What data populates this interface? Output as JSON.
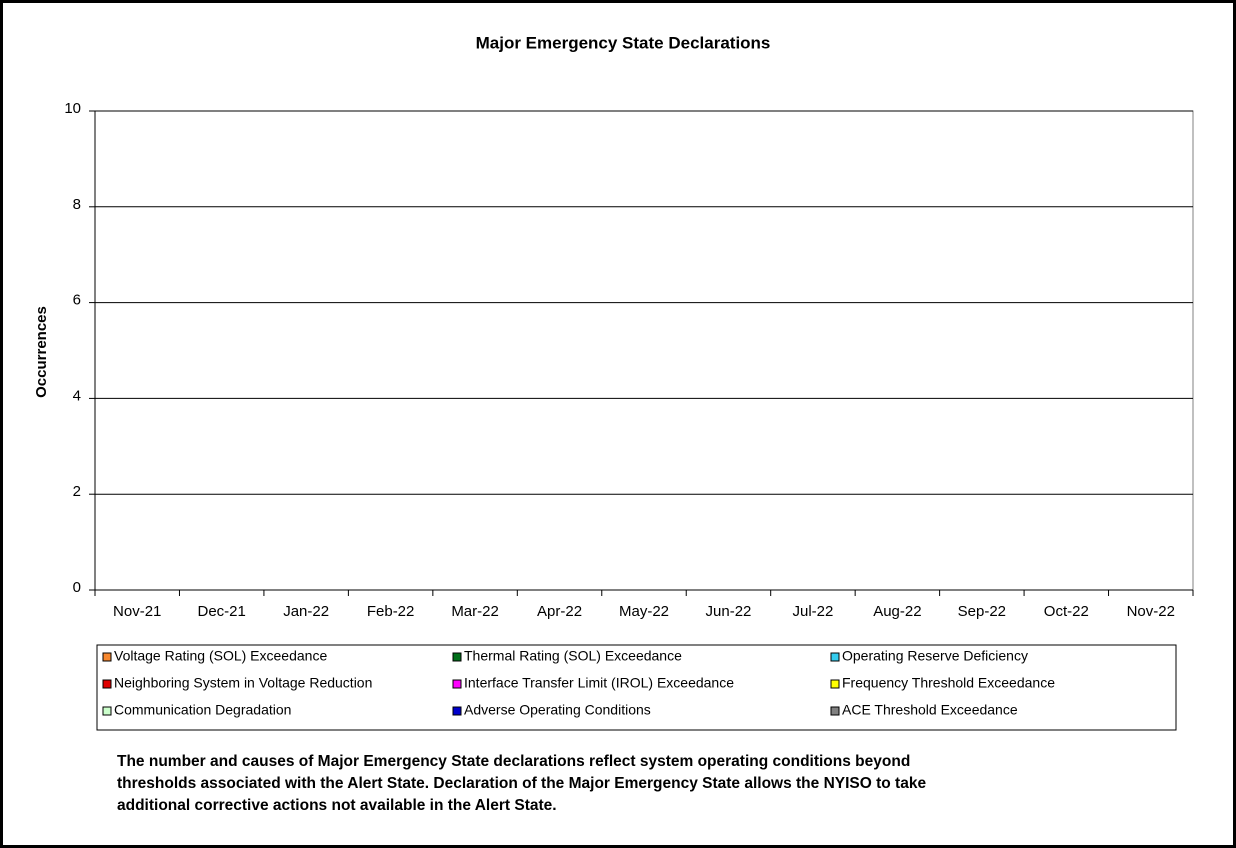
{
  "chart_data": {
    "type": "bar",
    "stacked": true,
    "title": "Major Emergency State Declarations",
    "y_label": "Occurrences",
    "categories": [
      "Nov-21",
      "Dec-21",
      "Jan-22",
      "Feb-22",
      "Mar-22",
      "Apr-22",
      "May-22",
      "Jun-22",
      "Jul-22",
      "Aug-22",
      "Sep-22",
      "Oct-22",
      "Nov-22"
    ],
    "series": [
      {
        "name": "Voltage Rating (SOL) Exceedance",
        "color": "#f7882f",
        "values": [
          0,
          0,
          0,
          0,
          0,
          0,
          0,
          0,
          0,
          0,
          0,
          0,
          0
        ]
      },
      {
        "name": "Thermal Rating (SOL) Exceedance",
        "color": "#006f1a",
        "values": [
          0,
          0,
          0,
          0,
          0,
          0,
          0,
          0,
          0,
          0,
          0,
          0,
          0
        ]
      },
      {
        "name": "Operating Reserve Deficiency",
        "color": "#33ccee",
        "values": [
          0,
          0,
          0,
          0,
          0,
          0,
          0,
          0,
          0,
          0,
          0,
          0,
          0
        ]
      },
      {
        "name": "Neighboring System in Voltage Reduction",
        "color": "#e00000",
        "values": [
          0,
          0,
          0,
          0,
          0,
          0,
          0,
          0,
          0,
          0,
          0,
          0,
          0
        ]
      },
      {
        "name": "Interface Transfer Limit (IROL) Exceedance",
        "color": "#ff00ff",
        "values": [
          0,
          0,
          0,
          0,
          0,
          0,
          0,
          0,
          0,
          0,
          0,
          0,
          0
        ]
      },
      {
        "name": "Frequency Threshold Exceedance",
        "color": "#ffff00",
        "values": [
          0,
          0,
          0,
          0,
          0,
          0,
          0,
          0,
          0,
          0,
          0,
          0,
          0
        ]
      },
      {
        "name": "Communication Degradation",
        "color": "#ccffcc",
        "values": [
          0,
          0,
          0,
          0,
          0,
          0,
          0,
          0,
          0,
          0,
          0,
          0,
          0
        ]
      },
      {
        "name": "Adverse Operating Conditions",
        "color": "#0000cc",
        "values": [
          0,
          0,
          0,
          0,
          0,
          0,
          0,
          0,
          0,
          0,
          0,
          0,
          0
        ]
      },
      {
        "name": "ACE Threshold Exceedance",
        "color": "#808080",
        "values": [
          0,
          0,
          0,
          0,
          0,
          0,
          0,
          0,
          0,
          0,
          0,
          0,
          0
        ]
      }
    ],
    "ylim": [
      0,
      10
    ],
    "yticks": [
      0,
      2,
      4,
      6,
      8,
      10
    ],
    "grid": true,
    "legend": "bottom",
    "note": [
      "The number and causes of Major Emergency State declarations reflect system operating conditions beyond",
      "thresholds associated with the Alert State.  Declaration of the Major Emergency State allows the NYISO to take",
      "additional corrective actions not available in the Alert State."
    ]
  }
}
